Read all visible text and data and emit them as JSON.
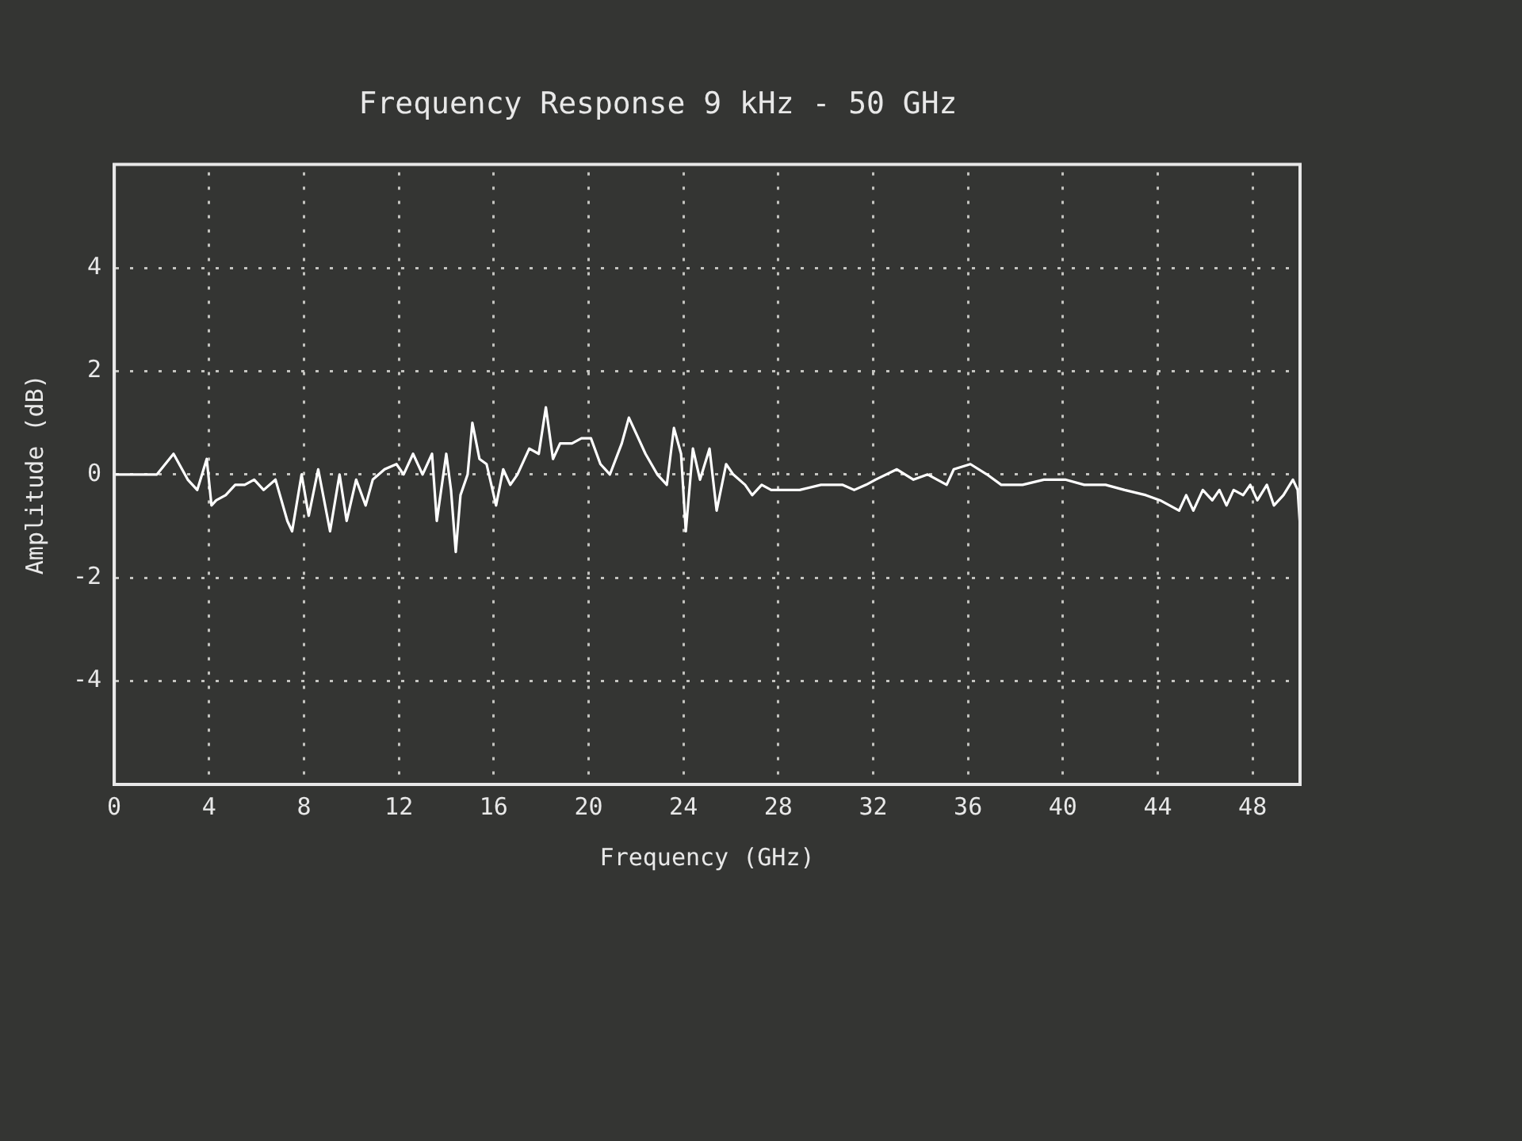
{
  "chart_data": {
    "type": "line",
    "title": "Frequency Response 9 kHz - 50 GHz",
    "xlabel": "Frequency (GHz)",
    "ylabel": "Amplitude (dB)",
    "x": [
      0,
      1.8,
      2.5,
      3.1,
      3.5,
      3.9,
      4.1,
      4.3,
      4.7,
      5.1,
      5.5,
      5.9,
      6.3,
      6.8,
      7.3,
      7.5,
      7.9,
      8.2,
      8.6,
      9.1,
      9.5,
      9.8,
      10.2,
      10.6,
      10.9,
      11.4,
      11.9,
      12.2,
      12.6,
      13.0,
      13.4,
      13.6,
      14.0,
      14.2,
      14.4,
      14.6,
      14.9,
      15.1,
      15.4,
      15.7,
      16.1,
      16.4,
      16.7,
      17.0,
      17.5,
      17.9,
      18.2,
      18.5,
      18.8,
      19.3,
      19.7,
      20.1,
      20.5,
      20.9,
      21.4,
      21.7,
      22.1,
      22.4,
      22.9,
      23.3,
      23.6,
      23.9,
      24.1,
      24.4,
      24.7,
      25.1,
      25.4,
      25.8,
      26.1,
      26.6,
      26.9,
      27.3,
      27.7,
      28.0,
      28.9,
      29.8,
      30.7,
      31.2,
      31.7,
      32.1,
      33.0,
      33.7,
      34.3,
      35.1,
      35.4,
      36.1,
      36.8,
      37.4,
      38.3,
      39.2,
      40.1,
      40.9,
      41.8,
      42.6,
      43.5,
      44.1,
      44.5,
      44.9,
      45.2,
      45.5,
      45.9,
      46.3,
      46.6,
      46.9,
      47.2,
      47.6,
      47.9,
      48.2,
      48.6,
      48.9,
      49.3,
      49.7,
      49.9,
      50.0
    ],
    "values": [
      0,
      0,
      0.4,
      -0.1,
      -0.3,
      0.3,
      -0.6,
      -0.5,
      -0.4,
      -0.2,
      -0.2,
      -0.1,
      -0.3,
      -0.1,
      -0.9,
      -1.1,
      0,
      -0.8,
      0.1,
      -1.1,
      0,
      -0.9,
      -0.1,
      -0.6,
      -0.1,
      0.1,
      0.2,
      0,
      0.4,
      0,
      0.4,
      -0.9,
      0.4,
      -0.3,
      -1.5,
      -0.4,
      0,
      1.0,
      0.3,
      0.2,
      -0.6,
      0.1,
      -0.2,
      0,
      0.5,
      0.4,
      1.3,
      0.3,
      0.6,
      0.6,
      0.7,
      0.7,
      0.2,
      0,
      0.6,
      1.1,
      0.7,
      0.4,
      0,
      -0.2,
      0.9,
      0.4,
      -1.1,
      0.5,
      -0.1,
      0.5,
      -0.7,
      0.2,
      0,
      -0.2,
      -0.4,
      -0.2,
      -0.3,
      -0.3,
      -0.3,
      -0.2,
      -0.2,
      -0.3,
      -0.2,
      -0.1,
      0.1,
      -0.1,
      0,
      -0.2,
      0.1,
      0.2,
      0,
      -0.2,
      -0.2,
      -0.1,
      -0.1,
      -0.2,
      -0.2,
      -0.3,
      -0.4,
      -0.5,
      -0.6,
      -0.7,
      -0.4,
      -0.7,
      -0.3,
      -0.5,
      -0.3,
      -0.6,
      -0.3,
      -0.4,
      -0.2,
      -0.5,
      -0.2,
      -0.6,
      -0.4,
      -0.1,
      -0.3,
      -1.0
    ],
    "color": "#ffffff",
    "xlim": [
      0,
      50
    ],
    "ylim": [
      -6,
      6
    ],
    "xticks": [
      0,
      4,
      8,
      12,
      16,
      20,
      24,
      28,
      32,
      36,
      40,
      44,
      48
    ],
    "yticks": [
      -4,
      -2,
      0,
      2,
      4
    ],
    "grid": true
  }
}
